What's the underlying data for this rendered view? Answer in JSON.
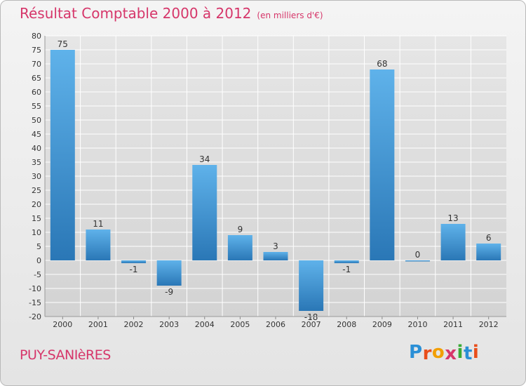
{
  "title": "Résultat Comptable 2000 à 2012",
  "unit": "(en milliers d'€)",
  "commune": "PUY-SANIèRES",
  "logo": {
    "letters": [
      "P",
      "r",
      "o",
      "x",
      "i",
      "t",
      "i"
    ],
    "colors": [
      "#2a8fd6",
      "#e94e1b",
      "#f29f05",
      "#d6366a",
      "#3aaa35",
      "#2a8fd6",
      "#e94e1b"
    ]
  },
  "colors": {
    "bar_top": "#5fb2ea",
    "bar_bottom": "#2a77b6",
    "accent": "#d6366a",
    "grid": "#ffffff"
  },
  "chart_data": {
    "type": "bar",
    "categories": [
      "2000",
      "2001",
      "2002",
      "2003",
      "2004",
      "2005",
      "2006",
      "2007",
      "2008",
      "2009",
      "2010",
      "2011",
      "2012"
    ],
    "values": [
      75,
      11,
      -1,
      -9,
      34,
      9,
      3,
      -18,
      -1,
      68,
      0,
      13,
      6
    ],
    "value_labels": [
      "75",
      "11",
      "-1",
      "-9",
      "34",
      "9",
      "3",
      "-18",
      "-1",
      "68",
      "0",
      "13",
      "6"
    ],
    "yticks": [
      "80",
      "75",
      "70",
      "65",
      "60",
      "55",
      "50",
      "45",
      "40",
      "35",
      "30",
      "25",
      "20",
      "15",
      "10",
      "5",
      "0",
      "-5",
      "-10",
      "-15",
      "-20"
    ],
    "ylim": [
      -20,
      80
    ],
    "grid": true,
    "legend": false
  }
}
